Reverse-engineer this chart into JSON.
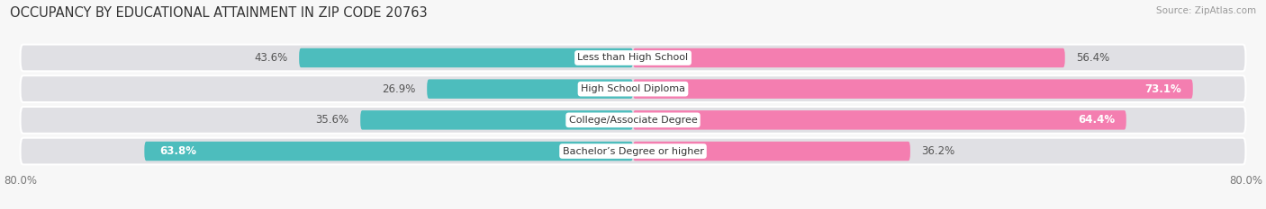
{
  "title": "OCCUPANCY BY EDUCATIONAL ATTAINMENT IN ZIP CODE 20763",
  "source": "Source: ZipAtlas.com",
  "categories": [
    "Less than High School",
    "High School Diploma",
    "College/Associate Degree",
    "Bachelor’s Degree or higher"
  ],
  "owner_pct": [
    43.6,
    26.9,
    35.6,
    63.8
  ],
  "renter_pct": [
    56.4,
    73.1,
    64.4,
    36.2
  ],
  "owner_color": "#4dbdbd",
  "renter_color": "#f47eb0",
  "bar_bg_color": "#e0e0e4",
  "xlim_left": -80,
  "xlim_right": 80,
  "background_color": "#f7f7f7",
  "bar_height": 0.62,
  "title_fontsize": 10.5,
  "label_fontsize": 8.5,
  "tick_fontsize": 8.5,
  "source_fontsize": 7.5
}
